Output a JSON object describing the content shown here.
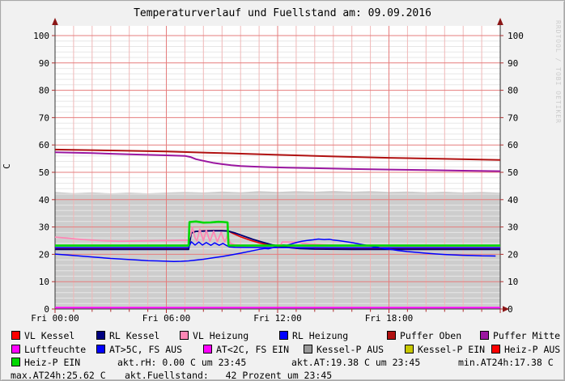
{
  "title": "Temperaturverlauf und Fuellstand am: 09.09.2016",
  "watermark": "RRDTOOL / TOBI OETIKER",
  "chart_data": {
    "type": "line",
    "title": "Temperaturverlauf und Fuellstand am: 09.09.2016",
    "xlabel": "",
    "ylabel": "C",
    "ylim": [
      0,
      100
    ],
    "x_hours": [
      0,
      24
    ],
    "grid": {
      "minor_y_step": 2,
      "major_y_step": 10,
      "minor_x_step_hours": 1,
      "major_x_step_hours": 6,
      "grid_on": true
    },
    "y_ticks": [
      0,
      10,
      20,
      30,
      40,
      50,
      60,
      70,
      80,
      90,
      100
    ],
    "x_ticks": [
      {
        "t": 0,
        "label": "Fri 00:00"
      },
      {
        "t": 6,
        "label": "Fri 06:00"
      },
      {
        "t": 12,
        "label": "Fri 12:00"
      },
      {
        "t": 18,
        "label": "Fri 18:00"
      }
    ],
    "area": {
      "id": "kessel-p-aus-fuellstand",
      "name": "Kessel-P AUS",
      "color": "#cdcdcd",
      "points": [
        [
          0,
          42.8
        ],
        [
          1,
          42.4
        ],
        [
          2,
          42.7
        ],
        [
          3,
          42.3
        ],
        [
          4,
          42.6
        ],
        [
          5,
          42.3
        ],
        [
          6,
          42.6
        ],
        [
          7,
          42.8
        ],
        [
          8,
          42.6
        ],
        [
          9,
          43.0
        ],
        [
          10,
          42.7
        ],
        [
          11,
          43.1
        ],
        [
          12,
          42.8
        ],
        [
          13,
          43.1
        ],
        [
          14,
          42.9
        ],
        [
          15,
          43.2
        ],
        [
          16,
          42.9
        ],
        [
          17,
          43.1
        ],
        [
          18,
          42.8
        ],
        [
          19,
          43.0
        ],
        [
          20,
          42.7
        ],
        [
          21,
          42.9
        ],
        [
          22,
          42.6
        ],
        [
          23,
          42.8
        ],
        [
          24,
          42.5
        ]
      ]
    },
    "series": [
      {
        "id": "vl-kessel",
        "name": "VL Kessel",
        "color": "#e60000",
        "width": 1.6,
        "points": [
          [
            0,
            22.1
          ],
          [
            7.2,
            22.1
          ],
          [
            7.3,
            27.5
          ],
          [
            7.5,
            28.3
          ],
          [
            8,
            28.6
          ],
          [
            8.5,
            28.7
          ],
          [
            9,
            28.7
          ],
          [
            9.3,
            28.6
          ],
          [
            9.6,
            27.6
          ],
          [
            10,
            26.4
          ],
          [
            10.5,
            25.2
          ],
          [
            11,
            24.2
          ],
          [
            11.5,
            23.4
          ],
          [
            12,
            22.9
          ],
          [
            12.5,
            22.6
          ],
          [
            13,
            22.4
          ],
          [
            14,
            22.3
          ],
          [
            16,
            22.2
          ],
          [
            18,
            22.2
          ],
          [
            20,
            22.2
          ],
          [
            22,
            22.2
          ],
          [
            24,
            22.2
          ]
        ]
      },
      {
        "id": "rl-kessel",
        "name": "RL Kessel",
        "color": "#000073",
        "width": 1.8,
        "points": [
          [
            0,
            21.8
          ],
          [
            7.2,
            21.8
          ],
          [
            7.35,
            27.8
          ],
          [
            7.6,
            28.4
          ],
          [
            8,
            28.5
          ],
          [
            8.5,
            28.6
          ],
          [
            9,
            28.6
          ],
          [
            9.35,
            28.5
          ],
          [
            9.7,
            27.8
          ],
          [
            10.2,
            26.6
          ],
          [
            10.7,
            25.4
          ],
          [
            11.2,
            24.4
          ],
          [
            11.7,
            23.5
          ],
          [
            12.2,
            22.9
          ],
          [
            12.7,
            22.4
          ],
          [
            13.2,
            22.1
          ],
          [
            14,
            21.9
          ],
          [
            16,
            21.8
          ],
          [
            18,
            21.8
          ],
          [
            20,
            21.8
          ],
          [
            22,
            21.8
          ],
          [
            24,
            21.8
          ]
        ]
      },
      {
        "id": "vl-heizung",
        "name": "VL Heizung",
        "color": "#ff87b5",
        "width": 1.8,
        "points": [
          [
            0,
            26.3
          ],
          [
            0.7,
            25.9
          ],
          [
            1.5,
            25.4
          ],
          [
            2.5,
            25.0
          ],
          [
            3.5,
            24.8
          ],
          [
            4.5,
            24.9
          ],
          [
            5.5,
            25.0
          ],
          [
            6.5,
            25.1
          ],
          [
            7.2,
            25.2
          ],
          [
            7.3,
            27.0
          ],
          [
            7.4,
            29.8
          ],
          [
            7.55,
            26.0
          ],
          [
            7.65,
            24.9
          ],
          [
            7.8,
            29.2
          ],
          [
            8.0,
            25.0
          ],
          [
            8.15,
            28.8
          ],
          [
            8.35,
            24.8
          ],
          [
            8.55,
            28.4
          ],
          [
            8.75,
            24.6
          ],
          [
            8.95,
            28.0
          ],
          [
            9.15,
            24.5
          ],
          [
            9.3,
            27.0
          ],
          [
            9.45,
            24.0
          ],
          [
            9.7,
            23.5
          ],
          [
            10,
            23.3
          ],
          [
            10.5,
            23.25
          ],
          [
            11,
            23.2
          ],
          [
            11.5,
            23.2
          ],
          [
            12.15,
            23.2
          ],
          [
            12.25,
            24.5
          ],
          [
            13.2,
            24.4
          ],
          [
            13.35,
            24.0
          ],
          [
            13.7,
            23.8
          ],
          [
            14.2,
            23.6
          ],
          [
            15,
            23.3
          ],
          [
            16,
            23.1
          ],
          [
            17,
            23.0
          ],
          [
            18,
            22.95
          ],
          [
            20,
            22.9
          ],
          [
            22,
            22.9
          ],
          [
            24,
            22.9
          ]
        ]
      },
      {
        "id": "rl-heizung",
        "name": "RL Heizung",
        "color": "#0000ff",
        "width": 1.5,
        "points": [
          [
            0,
            22.45
          ],
          [
            7.2,
            22.45
          ],
          [
            7.35,
            24.6
          ],
          [
            7.55,
            23.4
          ],
          [
            7.75,
            24.5
          ],
          [
            7.95,
            23.4
          ],
          [
            8.15,
            24.3
          ],
          [
            8.4,
            23.3
          ],
          [
            8.6,
            24.2
          ],
          [
            8.85,
            23.3
          ],
          [
            9.05,
            24.0
          ],
          [
            9.25,
            23.2
          ],
          [
            9.4,
            22.7
          ],
          [
            9.7,
            22.55
          ],
          [
            10,
            22.5
          ],
          [
            12,
            22.45
          ],
          [
            14,
            22.45
          ],
          [
            16,
            22.4
          ],
          [
            18,
            22.4
          ],
          [
            20,
            22.4
          ],
          [
            22,
            22.4
          ],
          [
            24,
            22.4
          ]
        ]
      },
      {
        "id": "puffer-oben",
        "name": "Puffer Oben",
        "color": "#b01010",
        "width": 2,
        "points": [
          [
            0,
            58.3
          ],
          [
            3,
            58.0
          ],
          [
            6,
            57.6
          ],
          [
            9,
            57.0
          ],
          [
            12,
            56.4
          ],
          [
            15,
            55.8
          ],
          [
            18,
            55.3
          ],
          [
            21,
            54.9
          ],
          [
            24,
            54.5
          ]
        ]
      },
      {
        "id": "puffer-mitte",
        "name": "Puffer Mitte",
        "color": "#9a16a0",
        "width": 2,
        "points": [
          [
            0,
            57.3
          ],
          [
            2,
            57.0
          ],
          [
            4,
            56.6
          ],
          [
            6,
            56.2
          ],
          [
            7,
            56.0
          ],
          [
            7.3,
            55.6
          ],
          [
            7.6,
            54.8
          ],
          [
            8,
            54.2
          ],
          [
            8.5,
            53.5
          ],
          [
            9,
            53.0
          ],
          [
            9.5,
            52.6
          ],
          [
            10,
            52.3
          ],
          [
            10.6,
            52.1
          ],
          [
            11.5,
            51.9
          ],
          [
            12.5,
            51.7
          ],
          [
            14,
            51.5
          ],
          [
            16,
            51.2
          ],
          [
            18,
            51.0
          ],
          [
            20,
            50.8
          ],
          [
            22,
            50.6
          ],
          [
            24,
            50.4
          ]
        ]
      },
      {
        "id": "luftfeuchte",
        "name": "Luftfeuchte",
        "color": "#ff00ff",
        "width": 1.8,
        "points": [
          [
            0,
            0.5
          ],
          [
            24,
            0.5
          ]
        ]
      },
      {
        "id": "aussentemperatur",
        "name": "AT>5C, FS AUS",
        "color": "#0000ff",
        "width": 1.5,
        "points": [
          [
            0,
            20.1
          ],
          [
            0.75,
            19.7
          ],
          [
            1.5,
            19.3
          ],
          [
            2.25,
            18.9
          ],
          [
            3,
            18.5
          ],
          [
            3.75,
            18.2
          ],
          [
            4.5,
            17.9
          ],
          [
            5,
            17.7
          ],
          [
            5.5,
            17.6
          ],
          [
            6,
            17.5
          ],
          [
            6.4,
            17.4
          ],
          [
            6.8,
            17.45
          ],
          [
            7.2,
            17.6
          ],
          [
            7.6,
            17.9
          ],
          [
            8,
            18.2
          ],
          [
            8.5,
            18.7
          ],
          [
            9,
            19.2
          ],
          [
            9.5,
            19.8
          ],
          [
            10,
            20.4
          ],
          [
            10.5,
            21.1
          ],
          [
            11,
            21.8
          ],
          [
            11.3,
            22.1
          ],
          [
            11.5,
            22.0
          ],
          [
            11.8,
            22.5
          ],
          [
            12,
            23.0
          ],
          [
            12.3,
            23.4
          ],
          [
            12.5,
            23.3
          ],
          [
            12.8,
            23.9
          ],
          [
            13,
            24.3
          ],
          [
            13.3,
            24.8
          ],
          [
            13.6,
            25.1
          ],
          [
            13.9,
            25.3
          ],
          [
            14.2,
            25.6
          ],
          [
            14.5,
            25.4
          ],
          [
            14.8,
            25.5
          ],
          [
            15,
            25.2
          ],
          [
            15.3,
            25.0
          ],
          [
            15.6,
            24.7
          ],
          [
            16,
            24.3
          ],
          [
            16.4,
            23.8
          ],
          [
            16.8,
            23.3
          ],
          [
            17.2,
            22.8
          ],
          [
            17.6,
            22.3
          ],
          [
            18,
            21.9
          ],
          [
            18.5,
            21.4
          ],
          [
            19,
            21.0
          ],
          [
            19.5,
            20.7
          ],
          [
            20,
            20.4
          ],
          [
            20.5,
            20.15
          ],
          [
            21,
            19.95
          ],
          [
            21.5,
            19.8
          ],
          [
            22,
            19.65
          ],
          [
            22.5,
            19.55
          ],
          [
            23,
            19.45
          ],
          [
            23.5,
            19.4
          ],
          [
            23.75,
            19.38
          ]
        ]
      },
      {
        "id": "heiz-p-ein",
        "name": "Heiz-P EIN",
        "color": "#00d800",
        "width": 2.6,
        "points": [
          [
            0,
            23.2
          ],
          [
            7.2,
            23.2
          ],
          [
            7.25,
            31.8
          ],
          [
            7.6,
            32.0
          ],
          [
            8,
            31.6
          ],
          [
            8.4,
            31.7
          ],
          [
            8.8,
            31.9
          ],
          [
            9.1,
            31.8
          ],
          [
            9.3,
            31.7
          ],
          [
            9.35,
            23.2
          ],
          [
            24,
            23.2
          ]
        ]
      }
    ]
  },
  "legend": {
    "rows": [
      [
        {
          "color": "#ff0000",
          "label": "VL Kessel"
        },
        {
          "color": "#000080",
          "label": "RL Kessel"
        },
        {
          "color": "#ff87b5",
          "label": "VL Heizung"
        },
        {
          "color": "#0000ff",
          "label": "RL Heizung"
        },
        {
          "color": "#b01010",
          "label": "Puffer Oben"
        },
        {
          "color": "#9a16a0",
          "label": "Puffer Mitte"
        }
      ],
      [
        {
          "color": "#ff00ff",
          "label": "Luftfeuchte"
        },
        {
          "color": "#0000ff",
          "label": "AT>5C, FS AUS"
        },
        {
          "color": "#ff00ff",
          "label": "AT<2C, FS EIN"
        },
        {
          "color": "#999999",
          "label": "Kessel-P AUS"
        },
        {
          "color": "#c8c800",
          "label": "Kessel-P EIN"
        },
        {
          "color": "#ff0000",
          "label": "Heiz-P AUS"
        }
      ],
      [
        {
          "color": "#00d800",
          "label": "Heiz-P EIN"
        },
        {
          "color": null,
          "label": "akt.rH: 0.00 C um 23:45"
        },
        {
          "color": null,
          "label": "akt.AT:19.38 C um 23:45"
        },
        {
          "color": null,
          "label": "min.AT24h:17.38 C"
        }
      ],
      [
        {
          "color": null,
          "label": "max.AT24h:25.62 C"
        },
        {
          "color": null,
          "label": "akt.Fuellstand:   42 Prozent um 23:45"
        }
      ]
    ]
  }
}
